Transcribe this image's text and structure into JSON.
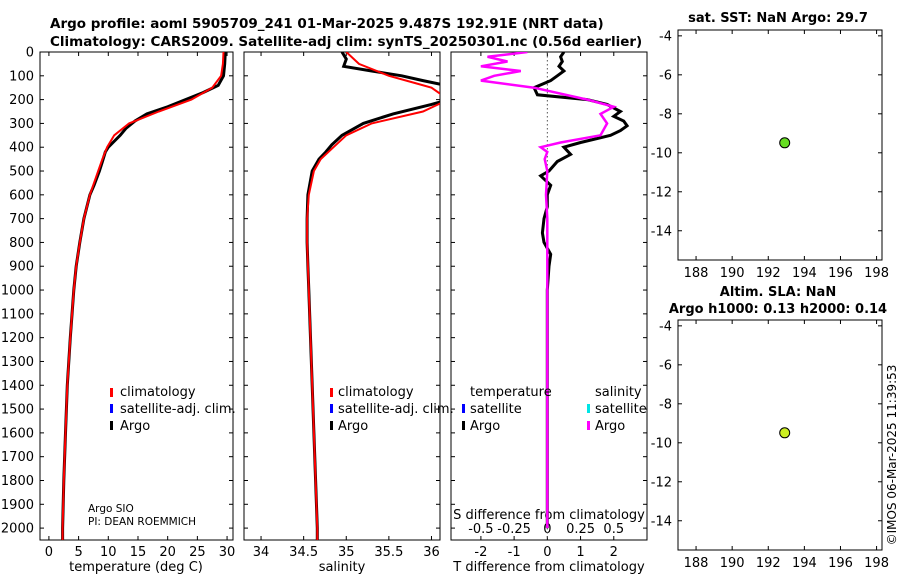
{
  "header": {
    "title_line1": "Argo profile: aoml 5905709_241 01-Mar-2025 9.487S 192.91E (NRT data)",
    "title_line2": "Climatology: CARS2009. Satellite-adj clim: synTS_20250301.nc (0.56d earlier)"
  },
  "colors": {
    "climatology": "#ff0000",
    "satellite": "#0000ff",
    "argo": "#000000",
    "argo_sal_diff": "#ff00ff",
    "satellite_sal": "#00e5e5",
    "sst_marker": "#66dd22",
    "sla_marker": "#ccee22"
  },
  "depth_axis": {
    "ylim": [
      0,
      2050
    ],
    "ticks": [
      0,
      100,
      200,
      300,
      400,
      500,
      600,
      700,
      800,
      900,
      1000,
      1100,
      1200,
      1300,
      1400,
      1500,
      1600,
      1700,
      1800,
      1900,
      2000
    ]
  },
  "panel_temperature": {
    "xlabel": "temperature (deg C)",
    "xlim": [
      -1.5,
      31
    ],
    "xticks": [
      0,
      5,
      10,
      15,
      20,
      25,
      30
    ],
    "legend": [
      {
        "label": "climatology",
        "key": "climatology"
      },
      {
        "label": "satellite-adj. clim.",
        "key": "satellite"
      },
      {
        "label": "Argo",
        "key": "argo"
      }
    ],
    "annotation_line1": "Argo SIO",
    "annotation_line2": "PI: DEAN ROEMMICH"
  },
  "panel_salinity": {
    "xlabel": "salinity",
    "xlim": [
      33.8,
      36.1
    ],
    "xticks": [
      34,
      34.5,
      35,
      35.5,
      36
    ],
    "xtick_labels": [
      "34",
      "34.5",
      "35",
      "35.5",
      "36"
    ],
    "legend": [
      {
        "label": "climatology",
        "key": "climatology"
      },
      {
        "label": "satellite-adj. clim.",
        "key": "satellite"
      },
      {
        "label": "Argo",
        "key": "argo"
      }
    ]
  },
  "panel_diff": {
    "xlabel": "T difference from climatology",
    "xlabel_top": "S difference from climatology",
    "xlim": [
      -2.9,
      3.0
    ],
    "xticks": [
      -2,
      -1,
      0,
      1,
      2
    ],
    "xtick_labels": [
      "-2",
      "-1",
      "0",
      "1",
      "2"
    ],
    "s_ticks": [
      -0.5,
      -0.25,
      0,
      0.25,
      0.5
    ],
    "s_tick_labels": [
      "-0.5",
      "-0.25",
      "0",
      "0.25",
      "0.5"
    ],
    "legend_temp_title": "temperature",
    "legend_sal_title": "salinity",
    "legend_temp": [
      {
        "label": "satellite",
        "key": "satellite"
      },
      {
        "label": "Argo",
        "key": "argo"
      }
    ],
    "legend_sal": [
      {
        "label": "satellite",
        "key": "satellite_sal"
      },
      {
        "label": "Argo",
        "key": "argo_sal_diff"
      }
    ]
  },
  "panel_sst": {
    "title": "sat. SST: NaN Argo: 29.7",
    "xlim": [
      187,
      198.3
    ],
    "ylim": [
      -15.5,
      -3.7
    ],
    "xticks": [
      188,
      190,
      192,
      194,
      196,
      198
    ],
    "yticks": [
      -4,
      -6,
      -8,
      -10,
      -12,
      -14
    ],
    "xtick_labels": [
      "188",
      "190",
      "192",
      "194",
      "196",
      "198"
    ],
    "ytick_labels": [
      "-4",
      "-6",
      "-8",
      "-10",
      "-12",
      "-14"
    ],
    "marker": {
      "lon": 192.91,
      "lat": -9.487
    }
  },
  "panel_sla": {
    "title_line1": "Altim. SLA: NaN",
    "title_line2": "Argo h1000: 0.13 h2000: 0.14",
    "xlim": [
      187,
      198.3
    ],
    "ylim": [
      -15.5,
      -3.7
    ],
    "xticks": [
      188,
      190,
      192,
      194,
      196,
      198
    ],
    "yticks": [
      -4,
      -6,
      -8,
      -10,
      -12,
      -14
    ],
    "xtick_labels": [
      "188",
      "190",
      "192",
      "194",
      "196",
      "198"
    ],
    "ytick_labels": [
      "-4",
      "-6",
      "-8",
      "-10",
      "-12",
      "-14"
    ],
    "marker": {
      "lon": 192.91,
      "lat": -9.487
    }
  },
  "credit": "©IMOS 06-Mar-2025 11:39:53",
  "chart_data": {
    "type": "line",
    "title": "Argo profile: aoml 5905709_241 01-Mar-2025 9.487S 192.91E (NRT data)",
    "series": [
      {
        "name": "climatology temperature",
        "panel": "temperature",
        "depth": [
          0,
          50,
          100,
          150,
          200,
          250,
          300,
          350,
          400,
          450,
          500,
          600,
          700,
          800,
          900,
          1000,
          1200,
          1400,
          1600,
          1800,
          2000,
          2050
        ],
        "values": [
          29.4,
          29.3,
          29.0,
          27.5,
          24.0,
          18.5,
          13.5,
          11.0,
          9.8,
          9.0,
          8.3,
          6.9,
          5.9,
          5.2,
          4.6,
          4.2,
          3.6,
          3.1,
          2.8,
          2.5,
          2.3,
          2.3
        ]
      },
      {
        "name": "Argo temperature",
        "panel": "temperature",
        "depth": [
          0,
          50,
          100,
          140,
          170,
          200,
          230,
          260,
          290,
          320,
          350,
          380,
          400,
          420,
          460,
          500,
          560,
          600,
          700,
          800,
          900,
          1000,
          1200,
          1400,
          1600,
          1800,
          2000,
          2050
        ],
        "values": [
          29.7,
          29.6,
          29.4,
          28.5,
          26.0,
          23.0,
          20.0,
          16.5,
          14.5,
          13.0,
          12.0,
          10.8,
          10.0,
          9.5,
          9.0,
          8.5,
          7.6,
          6.9,
          5.9,
          5.2,
          4.6,
          4.2,
          3.6,
          3.1,
          2.8,
          2.5,
          2.3,
          2.3
        ]
      },
      {
        "name": "climatology salinity",
        "panel": "salinity",
        "depth": [
          0,
          50,
          100,
          130,
          150,
          200,
          250,
          300,
          350,
          400,
          450,
          500,
          600,
          700,
          800,
          900,
          1000,
          1200,
          1400,
          1600,
          1800,
          2000,
          2050
        ],
        "values": [
          35.0,
          35.15,
          35.5,
          35.8,
          36.0,
          36.2,
          35.9,
          35.3,
          35.0,
          34.85,
          34.7,
          34.62,
          34.56,
          34.54,
          34.54,
          34.55,
          34.56,
          34.58,
          34.6,
          34.62,
          34.64,
          34.66,
          34.66
        ]
      },
      {
        "name": "Argo salinity",
        "panel": "salinity",
        "depth": [
          0,
          30,
          60,
          80,
          100,
          120,
          135,
          150,
          180,
          200,
          220,
          260,
          300,
          350,
          390,
          420,
          450,
          500,
          600,
          700,
          800,
          900,
          1000,
          1200,
          1400,
          1600,
          1800,
          2000,
          2050
        ],
        "values": [
          34.95,
          35.0,
          34.97,
          35.3,
          35.65,
          35.9,
          36.1,
          36.2,
          36.25,
          36.2,
          36.0,
          35.55,
          35.2,
          34.95,
          34.83,
          34.76,
          34.68,
          34.6,
          34.55,
          34.54,
          34.54,
          34.55,
          34.56,
          34.58,
          34.6,
          34.62,
          34.64,
          34.66,
          34.66
        ]
      },
      {
        "name": "Argo T difference from climatology",
        "panel": "diff",
        "axis": "T",
        "depth": [
          0,
          20,
          40,
          60,
          80,
          100,
          120,
          150,
          180,
          200,
          220,
          250,
          270,
          290,
          310,
          330,
          350,
          380,
          400,
          430,
          460,
          500,
          520,
          560,
          600,
          650,
          700,
          760,
          800,
          850,
          900,
          1000,
          1100,
          1200,
          1400,
          1600,
          1800,
          2000
        ],
        "values": [
          0.5,
          0.4,
          0.45,
          0.35,
          0.5,
          0.3,
          0.1,
          -0.4,
          -0.3,
          1.2,
          1.8,
          2.2,
          2.0,
          2.3,
          2.4,
          2.2,
          1.9,
          1.0,
          0.5,
          0.7,
          0.3,
          0.05,
          -0.2,
          0.1,
          0.0,
          0.0,
          -0.1,
          -0.15,
          -0.1,
          0.1,
          0.05,
          0.0,
          0.0,
          0.0,
          0.0,
          0.0,
          0.0,
          0.0
        ]
      },
      {
        "name": "Argo S difference from climatology",
        "panel": "diff",
        "axis": "S",
        "depth": [
          0,
          20,
          40,
          60,
          80,
          100,
          120,
          150,
          200,
          230,
          260,
          300,
          350,
          380,
          400,
          420,
          450,
          500,
          600,
          700,
          800,
          900,
          1000,
          1200,
          1400,
          1600,
          1800,
          2000
        ],
        "values": [
          -0.15,
          -0.45,
          -0.3,
          -0.5,
          -0.2,
          -0.4,
          -0.5,
          -0.1,
          0.3,
          0.5,
          0.4,
          0.45,
          0.4,
          0.1,
          -0.05,
          0.0,
          -0.02,
          0.0,
          -0.01,
          0.0,
          0.0,
          0.0,
          0.0,
          0.0,
          0.0,
          0.0,
          0.0,
          0.0
        ]
      }
    ]
  }
}
